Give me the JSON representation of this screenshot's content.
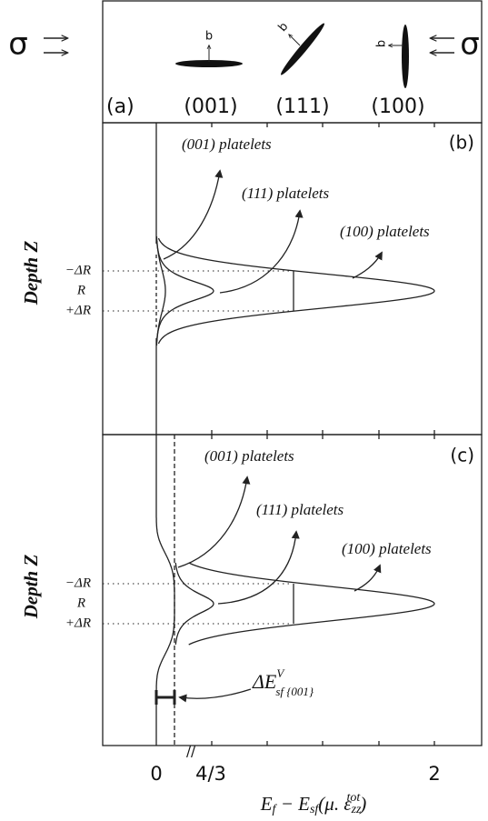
{
  "panel_a": {
    "label": "(a)",
    "stress": [
      "σ",
      "σ"
    ],
    "burgers_vector": "b",
    "orientations": [
      "(001)",
      "(111)",
      "(100)"
    ]
  },
  "panel_b": {
    "label": "(b)",
    "platelets": [
      "(001) platelets",
      "(111) platelets",
      "(100) platelets"
    ],
    "y_label": "Depth Z",
    "depth_ticks": [
      "−ΔR",
      "R",
      "+ΔR"
    ]
  },
  "panel_c": {
    "label": "(c)",
    "platelets": [
      "(001) platelets",
      "(111) platelets",
      "(100) platelets"
    ],
    "y_label": "Depth Z",
    "depth_ticks": [
      "−ΔR",
      "R",
      "+ΔR"
    ],
    "gap_label": [
      "ΔE",
      "V",
      "sf {001}"
    ]
  },
  "x_axis": {
    "ticks": [
      "0",
      "4/3",
      "2"
    ],
    "break": "//",
    "label": [
      "E",
      "f",
      " − E",
      "sf",
      "(μ. ε",
      "zz",
      "tot",
      ")"
    ]
  }
}
